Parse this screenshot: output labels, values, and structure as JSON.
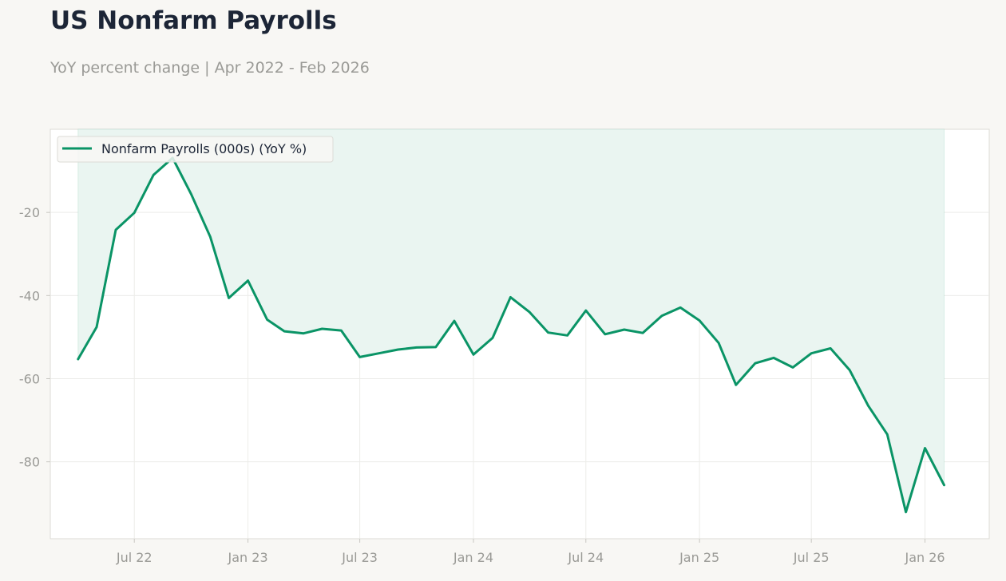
{
  "header": {
    "title": "US Nonfarm Payrolls",
    "subtitle": "YoY percent change | Apr 2022 - Feb 2026"
  },
  "colors": {
    "line": "#0a9466",
    "fill": "#eaf5f1",
    "grid": "#ecece9",
    "text": "#1c2536",
    "muted": "#9a9a96",
    "page_bg": "#f8f7f4",
    "plot_bg": "#ffffff"
  },
  "chart_data": {
    "type": "area",
    "title": "US Nonfarm Payrolls",
    "subtitle": "YoY percent change | Apr 2022 - Feb 2026",
    "xlabel": "",
    "ylabel": "",
    "x_ticks": [
      "2022-07",
      "2023-01",
      "2023-07",
      "2024-01",
      "2024-07",
      "2025-01",
      "2025-07",
      "2026-01"
    ],
    "x_tick_labels": [
      "Jul 22",
      "Jan 23",
      "Jul 23",
      "Jan 24",
      "Jul 24",
      "Jan 25",
      "Jul 25",
      "Jan 26"
    ],
    "y_ticks": [
      -20,
      -40,
      -60,
      -80
    ],
    "y_tick_labels": [
      "-20",
      "-40",
      "-60",
      "-80"
    ],
    "xlim": [
      "2022-02-15",
      "2026-04-15"
    ],
    "ylim": [
      -98.5,
      0
    ],
    "fill_baseline": 0,
    "grid": true,
    "legend": "top-left",
    "series": [
      {
        "name": "Nonfarm Payrolls (000s) (YoY %)",
        "x": [
          "2022-04",
          "2022-05",
          "2022-06",
          "2022-07",
          "2022-08",
          "2022-09",
          "2022-10",
          "2022-11",
          "2022-12",
          "2023-01",
          "2023-02",
          "2023-03",
          "2023-04",
          "2023-05",
          "2023-06",
          "2023-07",
          "2023-08",
          "2023-09",
          "2023-10",
          "2023-11",
          "2023-12",
          "2024-01",
          "2024-02",
          "2024-03",
          "2024-04",
          "2024-05",
          "2024-06",
          "2024-07",
          "2024-08",
          "2024-09",
          "2024-10",
          "2024-11",
          "2024-12",
          "2025-01",
          "2025-02",
          "2025-03",
          "2025-04",
          "2025-05",
          "2025-06",
          "2025-07",
          "2025-08",
          "2025-09",
          "2025-10",
          "2025-11",
          "2025-12",
          "2026-01",
          "2026-02"
        ],
        "values": [
          -55.3,
          -47.6,
          -24.2,
          -20.1,
          -11.0,
          -6.9,
          -15.6,
          -25.9,
          -40.6,
          -36.4,
          -45.8,
          -48.6,
          -49.1,
          -48.0,
          -48.4,
          -54.8,
          -53.9,
          -53.0,
          -52.5,
          -52.4,
          -46.1,
          -54.2,
          -50.2,
          -40.4,
          -44.0,
          -48.9,
          -49.6,
          -43.6,
          -49.3,
          -48.2,
          -49.0,
          -44.9,
          -42.9,
          -46.0,
          -51.4,
          -61.5,
          -56.3,
          -55.0,
          -57.3,
          -53.9,
          -52.7,
          -57.9,
          -66.5,
          -73.4,
          -92.1,
          -76.7,
          -85.6
        ]
      }
    ]
  }
}
